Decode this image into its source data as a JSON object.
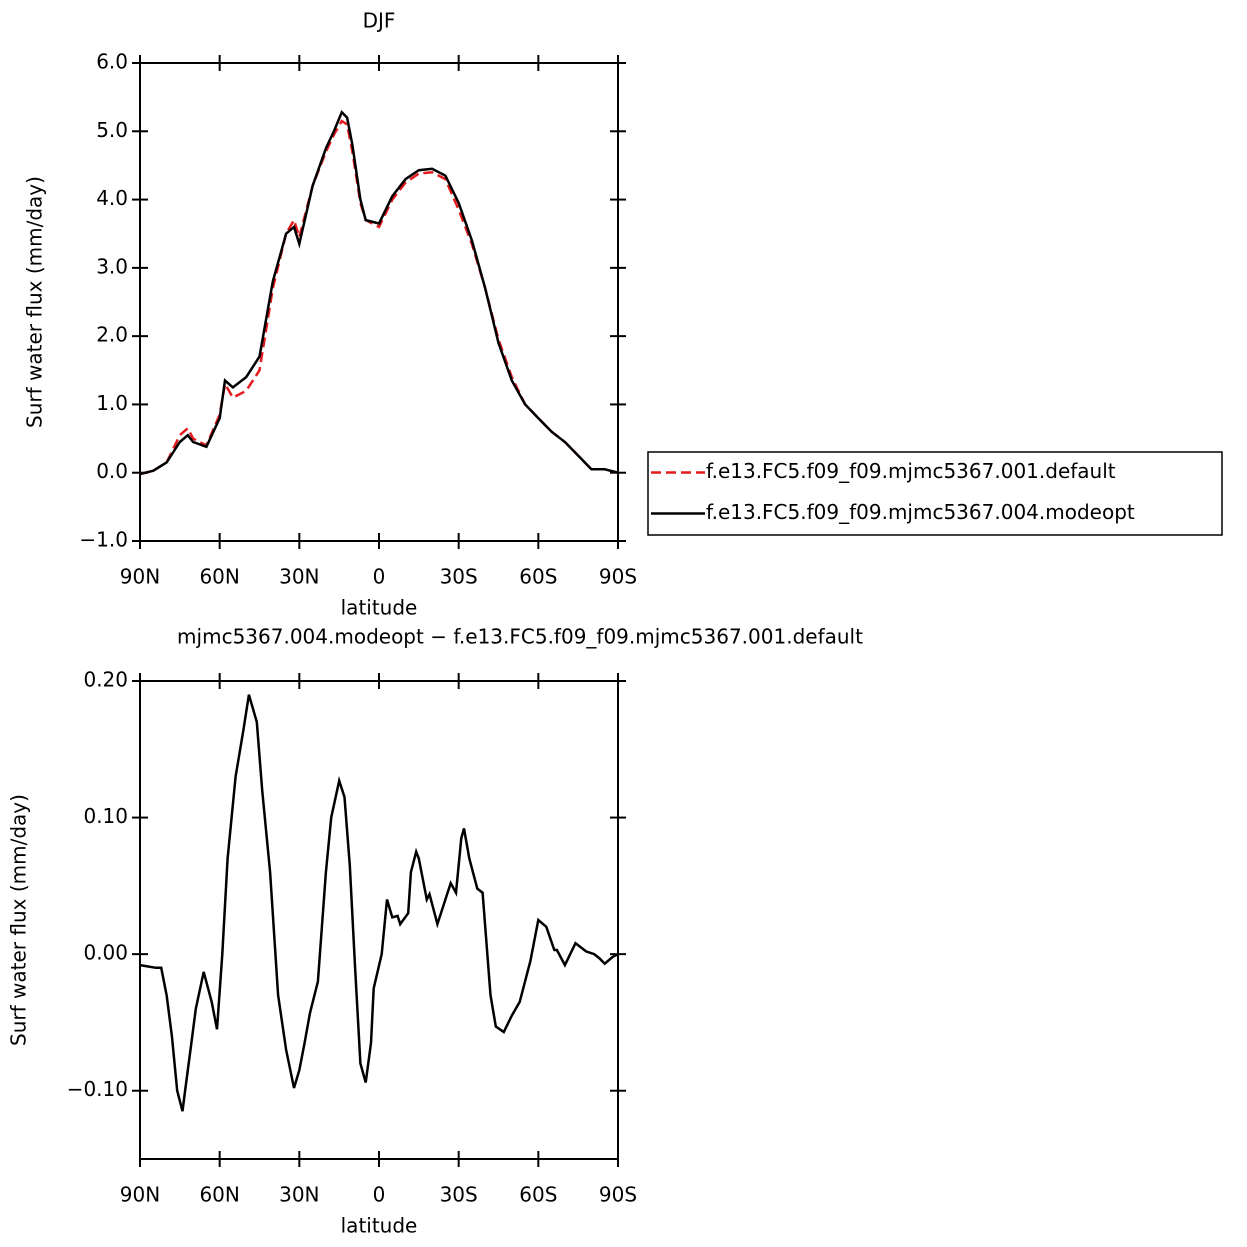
{
  "chart_data": [
    {
      "type": "line",
      "title": "DJF",
      "ylabel": "Surf water flux (mm/day)",
      "xlabel": "latitude",
      "xlim": [
        90,
        -90
      ],
      "ylim": [
        -1,
        6
      ],
      "xticks": [
        {
          "value": 90,
          "label": "90N"
        },
        {
          "value": 60,
          "label": "60N"
        },
        {
          "value": 30,
          "label": "30N"
        },
        0,
        {
          "value": -30,
          "label": "30S"
        },
        {
          "value": -60,
          "label": "60S"
        },
        {
          "value": -90,
          "label": "90S"
        }
      ],
      "yticks": [
        {
          "value": -1,
          "label": "−1.0"
        },
        {
          "value": 0,
          "label": "0.0"
        },
        {
          "value": 1,
          "label": "1.0"
        },
        {
          "value": 2,
          "label": "2.0"
        },
        {
          "value": 3,
          "label": "3.0"
        },
        {
          "value": 4,
          "label": "4.0"
        },
        {
          "value": 5,
          "label": "5.0"
        },
        {
          "value": 6,
          "label": "6.0"
        }
      ],
      "legend": "outside-right",
      "x": [
        90,
        85,
        80,
        75,
        72,
        70,
        65,
        60,
        58,
        55,
        50,
        45,
        40,
        35,
        32,
        30,
        25,
        20,
        17,
        14,
        12,
        10,
        7,
        5,
        0,
        -5,
        -10,
        -15,
        -20,
        -25,
        -30,
        -35,
        -40,
        -45,
        -50,
        -55,
        -60,
        -65,
        -70,
        -75,
        -80,
        -85,
        -90
      ],
      "series": [
        {
          "name": "f.e13.FC5.f09_f09.mjmc5367.001.default",
          "color": "#e41a1c",
          "linestyle": "dashed",
          "values": [
            -0.02,
            0.03,
            0.15,
            0.55,
            0.65,
            0.5,
            0.4,
            0.85,
            1.3,
            1.1,
            1.2,
            1.5,
            2.7,
            3.5,
            3.7,
            3.45,
            4.2,
            4.7,
            4.95,
            5.15,
            5.1,
            4.7,
            3.95,
            3.7,
            3.6,
            4.0,
            4.25,
            4.38,
            4.4,
            4.3,
            3.85,
            3.35,
            2.7,
            1.95,
            1.4,
            1.0,
            0.8,
            0.6,
            0.45,
            0.25,
            0.05,
            0.05,
            0.0
          ]
        },
        {
          "name": "f.e13.FC5.f09_f09.mjmc5367.004.modeopt",
          "color": "#000000",
          "linestyle": "solid",
          "values": [
            -0.02,
            0.03,
            0.15,
            0.45,
            0.55,
            0.45,
            0.38,
            0.8,
            1.35,
            1.25,
            1.4,
            1.7,
            2.8,
            3.5,
            3.6,
            3.35,
            4.2,
            4.75,
            5.0,
            5.28,
            5.2,
            4.8,
            4.0,
            3.7,
            3.65,
            4.05,
            4.3,
            4.43,
            4.45,
            4.35,
            3.95,
            3.4,
            2.7,
            1.9,
            1.35,
            1.0,
            0.8,
            0.6,
            0.45,
            0.25,
            0.05,
            0.05,
            0.0
          ]
        }
      ]
    },
    {
      "type": "line",
      "title": "mjmc5367.004.modeopt − f.e13.FC5.f09_f09.mjmc5367.001.default",
      "ylabel": "Surf water flux (mm/day)",
      "xlabel": "latitude",
      "xlim": [
        90,
        -90
      ],
      "ylim": [
        -0.15,
        0.2
      ],
      "xticks": [
        {
          "value": 90,
          "label": "90N"
        },
        {
          "value": 60,
          "label": "60N"
        },
        {
          "value": 30,
          "label": "30N"
        },
        0,
        {
          "value": -30,
          "label": "30S"
        },
        {
          "value": -60,
          "label": "60S"
        },
        {
          "value": -90,
          "label": "90S"
        }
      ],
      "yticks": [
        {
          "value": -0.1,
          "label": "−0.10"
        },
        {
          "value": 0,
          "label": "0.00"
        },
        {
          "value": 0.1,
          "label": "0.10"
        },
        {
          "value": 0.2,
          "label": "0.20"
        }
      ],
      "x": [
        90,
        84,
        82,
        80,
        78,
        76,
        74,
        73,
        71,
        69,
        66,
        63,
        61,
        59,
        57,
        54,
        51,
        49,
        46,
        44,
        41,
        38,
        35,
        32,
        30,
        28,
        26,
        23,
        20,
        18,
        15,
        13,
        11,
        9,
        7,
        5,
        3,
        2,
        -1,
        -3,
        -5,
        -7,
        -8,
        -11,
        -12,
        -14,
        -15,
        -18,
        -19,
        -22,
        -25,
        -27,
        -29,
        -31,
        -32,
        -34,
        -37,
        -39,
        -42,
        -44,
        -47,
        -50,
        -53,
        -57,
        -60,
        -63,
        -66,
        -67,
        -70,
        -74,
        -78,
        -81,
        -83,
        -85,
        -88,
        -90
      ],
      "series": [
        {
          "name": null,
          "color": "#000000",
          "linestyle": "solid",
          "values": [
            -0.008,
            -0.01,
            -0.01,
            -0.03,
            -0.06,
            -0.1,
            -0.115,
            -0.1,
            -0.07,
            -0.04,
            -0.013,
            -0.035,
            -0.055,
            0.0,
            0.07,
            0.13,
            0.165,
            0.19,
            0.17,
            0.12,
            0.06,
            -0.03,
            -0.07,
            -0.098,
            -0.085,
            -0.065,
            -0.043,
            -0.02,
            0.06,
            0.1,
            0.127,
            0.115,
            0.065,
            -0.01,
            -0.08,
            -0.094,
            -0.065,
            -0.025,
            0.0,
            0.04,
            0.027,
            0.028,
            0.022,
            0.03,
            0.06,
            0.075,
            0.07,
            0.04,
            0.044,
            0.022,
            0.04,
            0.052,
            0.045,
            0.085,
            0.092,
            0.07,
            0.048,
            0.045,
            -0.03,
            -0.053,
            -0.057,
            -0.045,
            -0.035,
            -0.005,
            0.025,
            0.02,
            0.003,
            0.003,
            -0.008,
            0.008,
            0.002,
            0.0,
            -0.003,
            -0.007,
            -0.002,
            0.0
          ]
        }
      ]
    }
  ]
}
